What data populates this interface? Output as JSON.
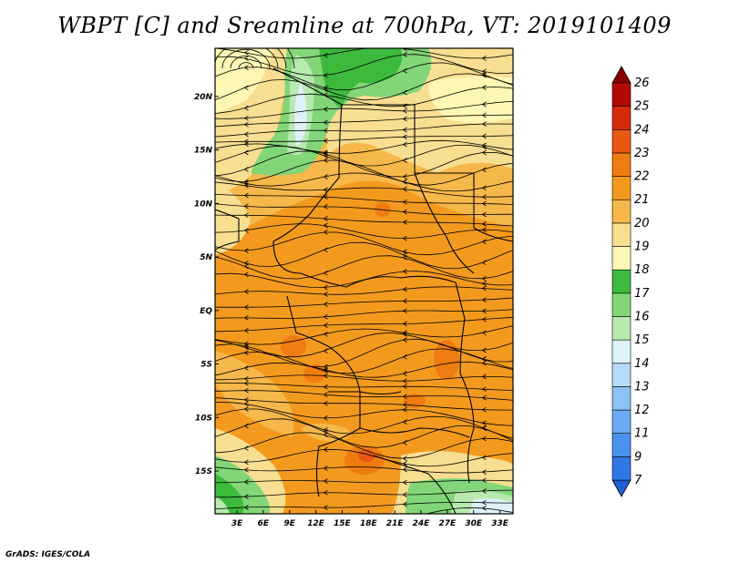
{
  "title": "WBPT [C] and Sreamline at 700hPa, VT: 2019101409",
  "credit": "GrADS: IGES/COLA",
  "map": {
    "lon_labels": [
      "3E",
      "6E",
      "9E",
      "12E",
      "15E",
      "18E",
      "21E",
      "24E",
      "27E",
      "30E",
      "33E"
    ],
    "lon_values": [
      3,
      6,
      9,
      12,
      15,
      18,
      21,
      24,
      27,
      30,
      33
    ],
    "lat_labels": [
      "20N",
      "15N",
      "10N",
      "5N",
      "EQ",
      "5S",
      "10S",
      "15S"
    ],
    "lat_values": [
      20,
      15,
      10,
      5,
      0,
      -5,
      -10,
      -15
    ],
    "lon_range": [
      0.5,
      34.5
    ],
    "lat_range": [
      -19,
      24.5
    ]
  },
  "colorbar": {
    "labels": [
      "7",
      "9",
      "11",
      "12",
      "13",
      "14",
      "15",
      "16",
      "17",
      "18",
      "19",
      "20",
      "21",
      "22",
      "23",
      "24",
      "25",
      "26"
    ],
    "colors": [
      "#1f5fd6",
      "#2f78e6",
      "#4a92ee",
      "#6aaaf2",
      "#8cc2f5",
      "#b4dcf8",
      "#dff2fb",
      "#b8eab0",
      "#82d678",
      "#3cba3c",
      "#fdf6b4",
      "#f8de90",
      "#f6b84a",
      "#f39a1e",
      "#ef7c10",
      "#e85812",
      "#d62a0c",
      "#b20a06",
      "#8a0000"
    ]
  }
}
